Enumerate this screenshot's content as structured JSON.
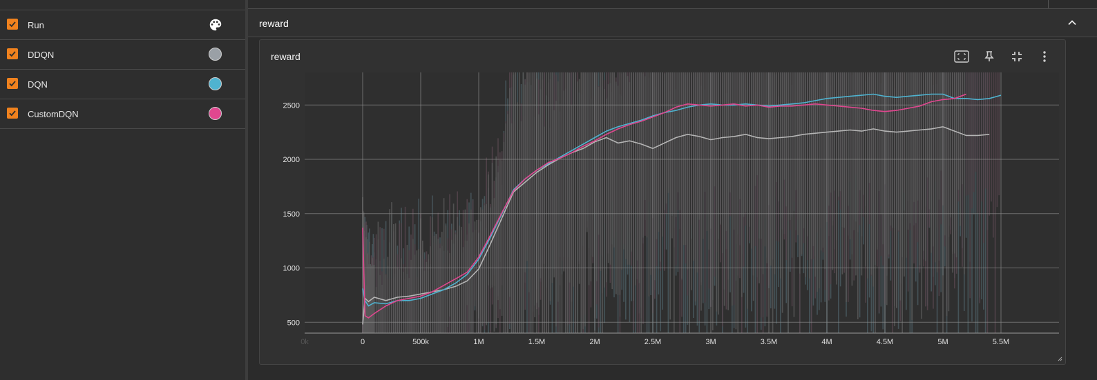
{
  "sidebar": {
    "header": {
      "label": "Run"
    },
    "runs": [
      {
        "label": "DDQN",
        "color": "#9aa0a6"
      },
      {
        "label": "DQN",
        "color": "#4fb3d0"
      },
      {
        "label": "CustomDQN",
        "color": "#e0478f"
      }
    ]
  },
  "group": {
    "title": "reward"
  },
  "card": {
    "title": "reward"
  },
  "chart_data": {
    "type": "line",
    "title": "reward",
    "xlabel": "",
    "ylabel": "",
    "x_ticks": [
      "0k",
      "0",
      "500k",
      "1M",
      "1.5M",
      "2M",
      "2.5M",
      "3M",
      "3.5M",
      "4M",
      "4.5M",
      "5M",
      "5.5M"
    ],
    "y_ticks": [
      "500",
      "1000",
      "1500",
      "2000",
      "2500"
    ],
    "xlim": [
      -500000,
      6000000
    ],
    "ylim": [
      400,
      2800
    ],
    "grid": true,
    "series": [
      {
        "name": "DDQN",
        "color": "#b5b5b5",
        "x": [
          0,
          20000,
          50000,
          100000,
          200000,
          300000,
          400000,
          500000,
          600000,
          700000,
          800000,
          900000,
          1000000,
          1100000,
          1200000,
          1300000,
          1400000,
          1500000,
          1600000,
          1700000,
          1800000,
          1900000,
          2000000,
          2100000,
          2200000,
          2300000,
          2400000,
          2500000,
          2600000,
          2700000,
          2800000,
          2900000,
          3000000,
          3100000,
          3200000,
          3300000,
          3400000,
          3500000,
          3600000,
          3700000,
          3800000,
          3900000,
          4000000,
          4100000,
          4200000,
          4300000,
          4400000,
          4500000,
          4600000,
          4700000,
          4800000,
          4900000,
          5000000,
          5100000,
          5200000,
          5300000,
          5400000
        ],
        "y": [
          480,
          720,
          690,
          730,
          700,
          730,
          740,
          760,
          780,
          800,
          830,
          880,
          990,
          1220,
          1460,
          1700,
          1790,
          1880,
          1950,
          2010,
          2060,
          2100,
          2160,
          2200,
          2150,
          2170,
          2140,
          2100,
          2150,
          2200,
          2230,
          2210,
          2180,
          2200,
          2210,
          2230,
          2200,
          2190,
          2200,
          2210,
          2230,
          2240,
          2250,
          2260,
          2270,
          2260,
          2280,
          2260,
          2250,
          2260,
          2270,
          2280,
          2300,
          2260,
          2220,
          2220,
          2230
        ]
      },
      {
        "name": "DQN",
        "color": "#4fb3d0",
        "x": [
          0,
          20000,
          50000,
          100000,
          200000,
          300000,
          400000,
          500000,
          600000,
          700000,
          800000,
          900000,
          1000000,
          1100000,
          1200000,
          1300000,
          1400000,
          1500000,
          1600000,
          1700000,
          1800000,
          1900000,
          2000000,
          2100000,
          2200000,
          2300000,
          2400000,
          2500000,
          2600000,
          2700000,
          2800000,
          2900000,
          3000000,
          3100000,
          3200000,
          3300000,
          3400000,
          3500000,
          3600000,
          3700000,
          3800000,
          3900000,
          4000000,
          4100000,
          4200000,
          4300000,
          4400000,
          4500000,
          4600000,
          4700000,
          4800000,
          4900000,
          5000000,
          5100000,
          5200000,
          5300000,
          5400000,
          5500000
        ],
        "y": [
          810,
          700,
          650,
          680,
          670,
          700,
          700,
          720,
          760,
          800,
          860,
          940,
          1080,
          1280,
          1500,
          1720,
          1820,
          1900,
          1960,
          2020,
          2080,
          2140,
          2200,
          2260,
          2300,
          2330,
          2360,
          2400,
          2430,
          2450,
          2480,
          2500,
          2510,
          2500,
          2500,
          2510,
          2500,
          2490,
          2500,
          2510,
          2520,
          2540,
          2560,
          2570,
          2580,
          2590,
          2600,
          2580,
          2570,
          2580,
          2590,
          2600,
          2600,
          2560,
          2560,
          2550,
          2560,
          2590
        ]
      },
      {
        "name": "CustomDQN",
        "color": "#e0478f",
        "x": [
          0,
          20000,
          50000,
          100000,
          200000,
          300000,
          400000,
          500000,
          600000,
          700000,
          800000,
          900000,
          1000000,
          1100000,
          1200000,
          1300000,
          1400000,
          1500000,
          1600000,
          1700000,
          1800000,
          1900000,
          2000000,
          2100000,
          2200000,
          2300000,
          2400000,
          2500000,
          2600000,
          2700000,
          2800000,
          2900000,
          3000000,
          3100000,
          3200000,
          3300000,
          3400000,
          3500000,
          3600000,
          3700000,
          3800000,
          3900000,
          4000000,
          4100000,
          4200000,
          4300000,
          4400000,
          4500000,
          4600000,
          4700000,
          4800000,
          4900000,
          5000000,
          5100000,
          5200000
        ],
        "y": [
          1370,
          560,
          540,
          580,
          650,
          700,
          720,
          740,
          780,
          840,
          900,
          960,
          1100,
          1300,
          1510,
          1710,
          1820,
          1900,
          1970,
          2010,
          2060,
          2120,
          2170,
          2230,
          2280,
          2320,
          2350,
          2390,
          2430,
          2480,
          2510,
          2500,
          2490,
          2500,
          2510,
          2490,
          2500,
          2480,
          2490,
          2490,
          2500,
          2510,
          2500,
          2490,
          2480,
          2470,
          2450,
          2440,
          2450,
          2470,
          2490,
          2530,
          2550,
          2560,
          2600
        ]
      }
    ]
  }
}
